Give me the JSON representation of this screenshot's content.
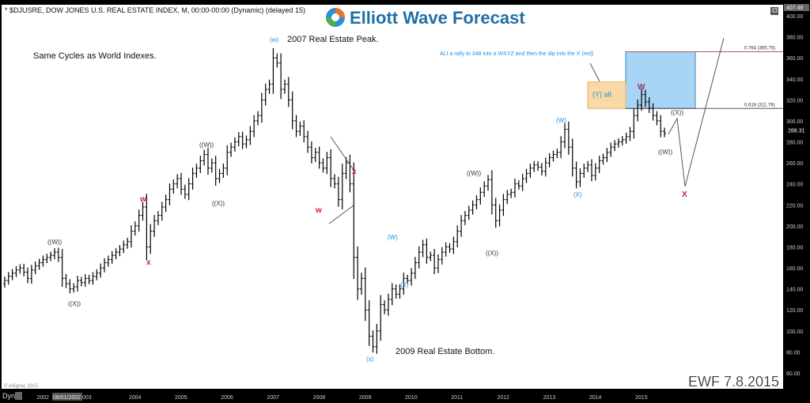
{
  "header": {
    "title": "* $DJUSRE, DOW JONES U.S. REAL ESTATE INDEX, M, 00:00-00:00 (Dynamic) (delayed 15)",
    "logo_text": "Elliott Wave Forecast",
    "copyright": "© eSignal, 2015",
    "watermark": "EWF  7.8.2015",
    "dyn_label": "Dyn",
    "cursor_date": "08/01/2002",
    "restore_icon": "window-restore-icon"
  },
  "chart_data": {
    "type": "ohlc-bar",
    "symbol": "$DJUSRE",
    "interval": "M",
    "start": "2001-03",
    "end": "2015-07",
    "ylim": [
      60,
      407.48
    ],
    "y_ticks": [
      "400.00",
      "380.00",
      "360.00",
      "340.00",
      "320.00",
      "300.00",
      "280.00",
      "260.00",
      "240.00",
      "220.00",
      "200.00",
      "180.00",
      "160.00",
      "140.00",
      "120.00",
      "100.00",
      "80.00",
      "60.00"
    ],
    "x_ticks": [
      "2002",
      "2003",
      "2004",
      "2005",
      "2006",
      "2007",
      "2008",
      "2009",
      "2010",
      "2011",
      "2012",
      "2013",
      "2014",
      "2015"
    ],
    "top_value": "407.48",
    "last_value": "288.31",
    "monthly_close": {
      "2001": [
        148,
        152,
        155,
        158,
        160,
        156,
        150,
        158,
        162,
        165
      ],
      "2002": [
        168,
        170,
        172,
        175,
        170,
        150,
        145,
        140,
        142,
        148,
        146,
        150
      ],
      "2003": [
        148,
        152,
        155,
        160,
        165,
        168,
        172,
        175,
        178,
        182,
        185,
        195
      ],
      "2004": [
        200,
        210,
        218,
        180,
        195,
        205,
        210,
        218,
        225,
        235,
        240,
        245
      ],
      "2005": [
        235,
        230,
        240,
        250,
        255,
        262,
        268,
        255,
        260,
        245,
        250,
        255
      ],
      "2006": [
        270,
        275,
        280,
        285,
        278,
        282,
        290,
        300,
        305,
        320,
        330,
        335
      ],
      "2007": [
        360,
        355,
        330,
        335,
        320,
        300,
        290,
        295,
        285,
        275,
        265,
        270
      ],
      "2008": [
        260,
        255,
        265,
        245,
        240,
        225,
        250,
        260,
        240,
        170,
        140,
        150
      ],
      "2009": [
        120,
        95,
        85,
        100,
        125,
        120,
        130,
        140,
        135,
        140,
        150,
        148
      ],
      "2010": [
        155,
        165,
        175,
        182,
        170,
        172,
        160,
        168,
        175,
        180,
        178,
        185
      ],
      "2011": [
        195,
        205,
        210,
        215,
        220,
        225,
        232,
        238,
        244,
        220,
        205,
        215
      ],
      "2012": [
        225,
        230,
        232,
        240,
        238,
        245,
        250,
        255,
        258,
        256,
        252,
        260
      ],
      "2013": [
        265,
        268,
        270,
        280,
        292,
        275,
        255,
        242,
        250,
        255,
        258,
        248
      ],
      "2014": [
        255,
        262,
        265,
        270,
        275,
        278,
        280,
        282,
        285,
        290,
        305,
        315
      ],
      "2015": [
        325,
        318,
        312,
        305,
        300,
        290,
        288
      ]
    },
    "fib_levels": [
      {
        "label": "0.764 (365.76)",
        "value": 365.76
      },
      {
        "label": "0.618 (311.79)",
        "value": 311.79
      }
    ],
    "target_box": {
      "top": 365.76,
      "bottom": 311.79,
      "color": "#a8d4f5"
    },
    "alt_box": {
      "label": "(Y) alt",
      "top": 337,
      "bottom": 311.79,
      "color": "#f9d9a6"
    },
    "notes": {
      "cycles": "Same Cycles as World Indexes.",
      "peak": "2007 Real Estate Peak.",
      "bottom": "2009 Real Estate Bottom.",
      "alt": "ALt a rally to 348 into a  WXYZ and then the dip into the X (red)"
    },
    "wave_labels": [
      {
        "text": "((W))",
        "color": "#333333"
      },
      {
        "text": "((X))",
        "color": "#333333"
      },
      {
        "text": "w",
        "color": "#d0202a"
      },
      {
        "text": "x",
        "color": "#d0202a"
      },
      {
        "text": "((W))",
        "color": "#333333"
      },
      {
        "text": "((X))",
        "color": "#333333"
      },
      {
        "text": "(w)",
        "color": "#2a8fd6"
      },
      {
        "text": "w",
        "color": "#d0202a"
      },
      {
        "text": "x",
        "color": "#d0202a"
      },
      {
        "text": "(x)",
        "color": "#2a8fd6"
      },
      {
        "text": "(W)",
        "color": "#2a8fd6"
      },
      {
        "text": "(X)",
        "color": "#2a8fd6"
      },
      {
        "text": "((W))",
        "color": "#333333"
      },
      {
        "text": "((X))",
        "color": "#333333"
      },
      {
        "text": "(W)",
        "color": "#2a8fd6"
      },
      {
        "text": "(X)",
        "color": "#2a8fd6"
      },
      {
        "text": "W",
        "color": "#9b2d6b"
      },
      {
        "text": "((X))",
        "color": "#333333"
      },
      {
        "text": "((W))",
        "color": "#333333"
      },
      {
        "text": "X",
        "color": "#d0202a"
      }
    ]
  }
}
